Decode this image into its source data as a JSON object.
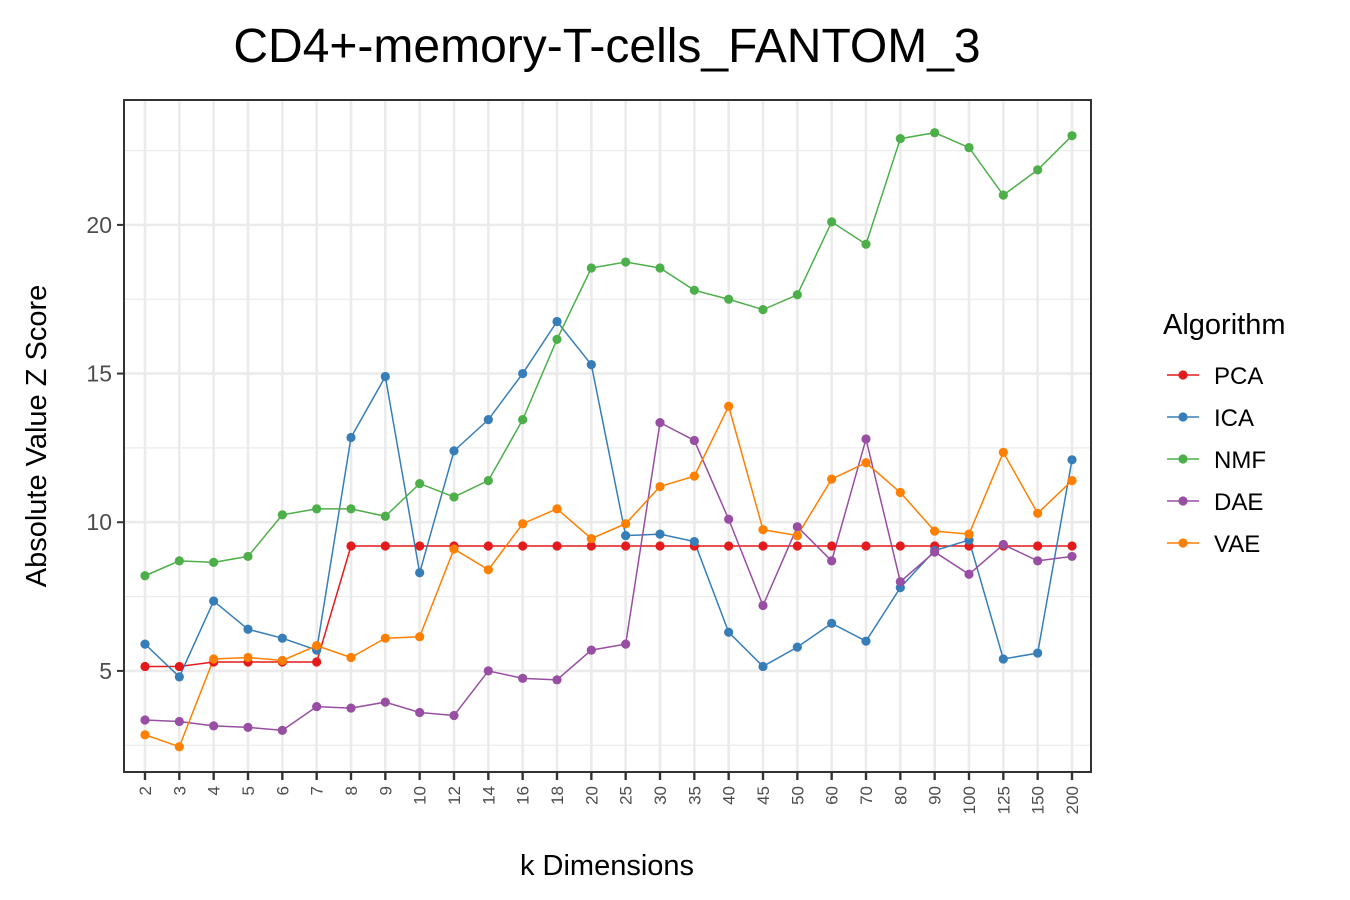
{
  "chart_data": {
    "type": "line",
    "title": "CD4+-memory-T-cells_FANTOM_3",
    "xlabel": "k Dimensions",
    "ylabel": "Absolute Value Z Score",
    "categories": [
      "2",
      "3",
      "4",
      "5",
      "6",
      "7",
      "8",
      "9",
      "10",
      "12",
      "14",
      "16",
      "18",
      "20",
      "25",
      "30",
      "35",
      "40",
      "45",
      "50",
      "60",
      "70",
      "80",
      "90",
      "100",
      "125",
      "150",
      "200"
    ],
    "yticks": [
      5,
      10,
      15,
      20
    ],
    "ylim": [
      1.6,
      24.2
    ],
    "grid": true,
    "legend": {
      "title": "Algorithm",
      "position": "right"
    },
    "series": [
      {
        "name": "PCA",
        "color": "#e41a1c",
        "values": [
          5.15,
          5.15,
          5.3,
          5.3,
          5.3,
          5.3,
          9.2,
          9.2,
          9.2,
          9.2,
          9.2,
          9.2,
          9.2,
          9.2,
          9.2,
          9.2,
          9.2,
          9.2,
          9.2,
          9.2,
          9.2,
          9.2,
          9.2,
          9.2,
          9.2,
          9.2,
          9.2,
          9.2
        ]
      },
      {
        "name": "ICA",
        "color": "#377eb8",
        "values": [
          5.9,
          4.8,
          7.35,
          6.4,
          6.1,
          5.7,
          12.85,
          14.9,
          8.3,
          12.4,
          13.45,
          15.0,
          16.75,
          15.3,
          9.55,
          9.6,
          9.35,
          6.3,
          5.15,
          5.8,
          6.6,
          6.0,
          7.8,
          9.05,
          9.4,
          5.4,
          5.6,
          12.1
        ]
      },
      {
        "name": "NMF",
        "color": "#4daf4a",
        "values": [
          8.2,
          8.7,
          8.65,
          8.85,
          10.25,
          10.45,
          10.45,
          10.2,
          11.3,
          10.85,
          11.4,
          13.45,
          16.15,
          18.55,
          18.75,
          18.55,
          17.8,
          17.5,
          17.15,
          17.65,
          20.1,
          19.35,
          22.9,
          23.1,
          22.6,
          21.0,
          21.85,
          23.0
        ]
      },
      {
        "name": "DAE",
        "color": "#984ea3",
        "values": [
          3.35,
          3.3,
          3.15,
          3.1,
          3.0,
          3.8,
          3.75,
          3.95,
          3.6,
          3.5,
          5.0,
          4.75,
          4.7,
          5.7,
          5.9,
          13.35,
          12.75,
          10.1,
          7.2,
          9.85,
          8.7,
          12.8,
          8.0,
          9.0,
          8.25,
          9.25,
          8.7,
          8.85
        ]
      },
      {
        "name": "VAE",
        "color": "#ff7f00",
        "values": [
          2.85,
          2.45,
          5.4,
          5.45,
          5.35,
          5.85,
          5.45,
          6.1,
          6.15,
          9.1,
          8.4,
          9.95,
          10.45,
          9.45,
          9.95,
          11.2,
          11.55,
          13.9,
          9.75,
          9.55,
          11.45,
          12.0,
          11.0,
          9.7,
          9.6,
          12.35,
          10.3,
          11.4
        ]
      }
    ]
  }
}
